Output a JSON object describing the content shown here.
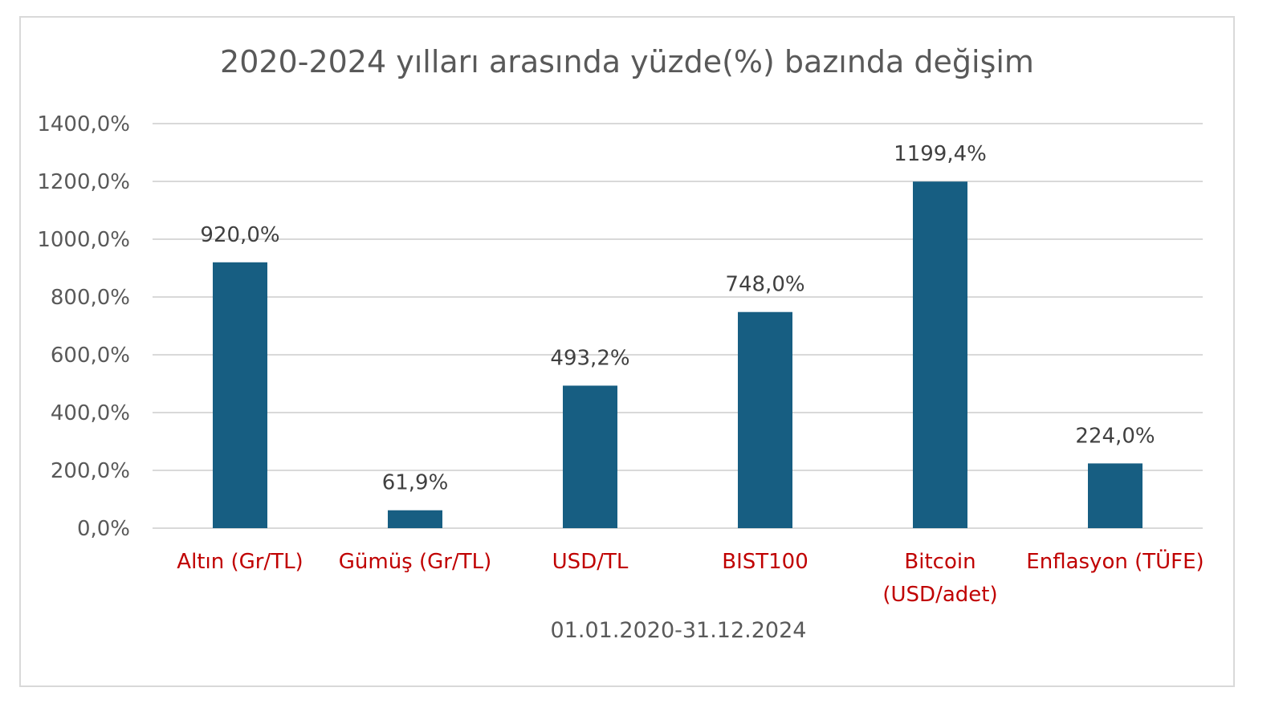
{
  "chart_data": {
    "type": "bar",
    "title": "2020-2024 yılları arasında yüzde(%) bazında değişim",
    "xlabel": "01.01.2020-31.12.2024",
    "ylabel": "",
    "ylim": [
      0,
      1400
    ],
    "y_ticks": [
      0,
      200,
      400,
      600,
      800,
      1000,
      1200,
      1400
    ],
    "y_tick_labels": [
      "0,0%",
      "200,0%",
      "400,0%",
      "600,0%",
      "800,0%",
      "1000,0%",
      "1200,0%",
      "1400,0%"
    ],
    "grid": true,
    "categories": [
      [
        "Altın (Gr/TL)"
      ],
      [
        "Gümüş (Gr/TL)"
      ],
      [
        "USD/TL"
      ],
      [
        "BIST100"
      ],
      [
        "Bitcoin",
        "(USD/adet)"
      ],
      [
        "Enflasyon (TÜFE)"
      ]
    ],
    "values": [
      920.0,
      61.9,
      493.2,
      748.0,
      1199.4,
      224.0
    ],
    "data_labels": [
      "920,0%",
      "61,9%",
      "493,2%",
      "748,0%",
      "1199,4%",
      "224,0%"
    ],
    "colors": {
      "bar": "#175e82",
      "category_label": "#c00000",
      "gridline": "#d9d9d9",
      "tick_label": "#595959",
      "data_label": "#404040"
    }
  }
}
